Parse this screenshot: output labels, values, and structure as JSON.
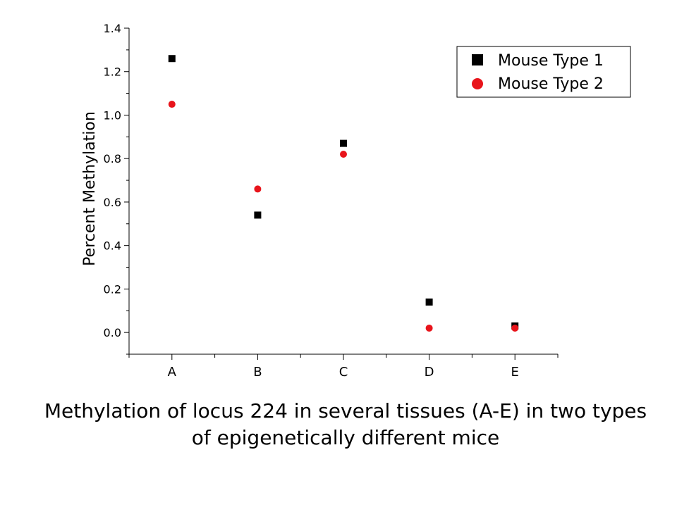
{
  "caption": "Methylation of locus 224 in several tissues (A-E) in two types of epigenetically different mice",
  "chart_data": {
    "type": "scatter",
    "title": "",
    "xlabel": "",
    "ylabel": "Percent Methylation",
    "categories": [
      "A",
      "B",
      "C",
      "D",
      "E"
    ],
    "ylim": [
      -0.1,
      1.4
    ],
    "yticks": [
      "0.0",
      "0.2",
      "0.4",
      "0.6",
      "0.8",
      "1.0",
      "1.2",
      "1.4"
    ],
    "legend_position": "top-right",
    "grid": false,
    "series": [
      {
        "name": "Mouse Type 1",
        "marker": "square",
        "color": "#000000",
        "values": [
          1.26,
          0.54,
          0.87,
          0.14,
          0.03
        ]
      },
      {
        "name": "Mouse Type 2",
        "marker": "circle",
        "color": "#e8141b",
        "values": [
          1.05,
          0.66,
          0.82,
          0.02,
          0.02
        ]
      }
    ]
  }
}
